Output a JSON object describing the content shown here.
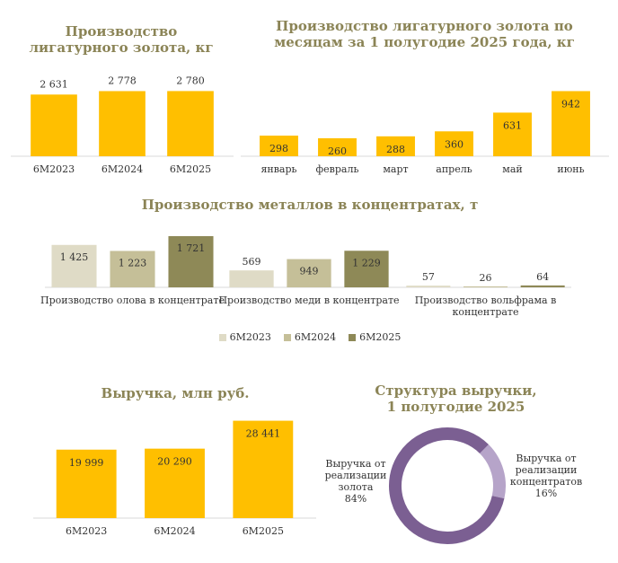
{
  "colors": {
    "gold": "#ffbf00",
    "tin_6m2023": "#dfdbc6",
    "tin_6m2024": "#c5bf98",
    "tin_6m2025": "#8e8957",
    "pie_main": "#7b5f92",
    "pie_minor": "#b6a4c9",
    "axis": "#d9d9d9"
  },
  "chart_data": [
    {
      "type": "bar",
      "title": "Производство лигатурного золота, кг",
      "categories": [
        "6М2023",
        "6М2024",
        "6М2025"
      ],
      "values": [
        2631,
        2778,
        2780
      ],
      "value_labels": [
        "2 631",
        "2 778",
        "2 780"
      ],
      "ylim": [
        0,
        3600
      ]
    },
    {
      "type": "bar",
      "title": "Производство лигатурного золота по месяцам за 1 полугодие 2025 года, кг",
      "categories": [
        "январь",
        "февраль",
        "март",
        "апрель",
        "май",
        "июнь"
      ],
      "values": [
        298,
        260,
        288,
        360,
        631,
        942
      ],
      "value_labels": [
        "298",
        "260",
        "288",
        "360",
        "631",
        "942"
      ],
      "ylim": [
        0,
        1000
      ]
    },
    {
      "type": "bar",
      "title": "Производство металлов в концентратах, т",
      "categories": [
        "Производство олова в концентрате",
        "Производство меди в концентрате",
        "Производство вольфрама в концентрате"
      ],
      "series": [
        {
          "name": "6М2023",
          "values": [
            1425,
            569,
            57
          ],
          "value_labels": [
            "1 425",
            "569",
            "57"
          ]
        },
        {
          "name": "6М2024",
          "values": [
            1223,
            949,
            26
          ],
          "value_labels": [
            "1 223",
            "949",
            "26"
          ]
        },
        {
          "name": "6М2025",
          "values": [
            1721,
            1229,
            64
          ],
          "value_labels": [
            "1 721",
            "1 229",
            "64"
          ]
        }
      ],
      "legend": [
        "6М2023",
        "6М2024",
        "6М2025"
      ],
      "ylim": [
        0,
        1750
      ]
    },
    {
      "type": "bar",
      "title": "Выручка, млн руб.",
      "categories": [
        "6М2023",
        "6М2024",
        "6М2025"
      ],
      "values": [
        19999,
        20290,
        28441
      ],
      "value_labels": [
        "19 999",
        "20 290",
        "28 441"
      ],
      "ylim": [
        0,
        32000
      ]
    },
    {
      "type": "pie",
      "title": "Структура выручки, 1 полугодие 2025",
      "labels": [
        "Выручка от реализации золота",
        "Выручка от реализации концентратов"
      ],
      "values": [
        84,
        16
      ],
      "value_labels": [
        "84%",
        "16%"
      ]
    }
  ]
}
